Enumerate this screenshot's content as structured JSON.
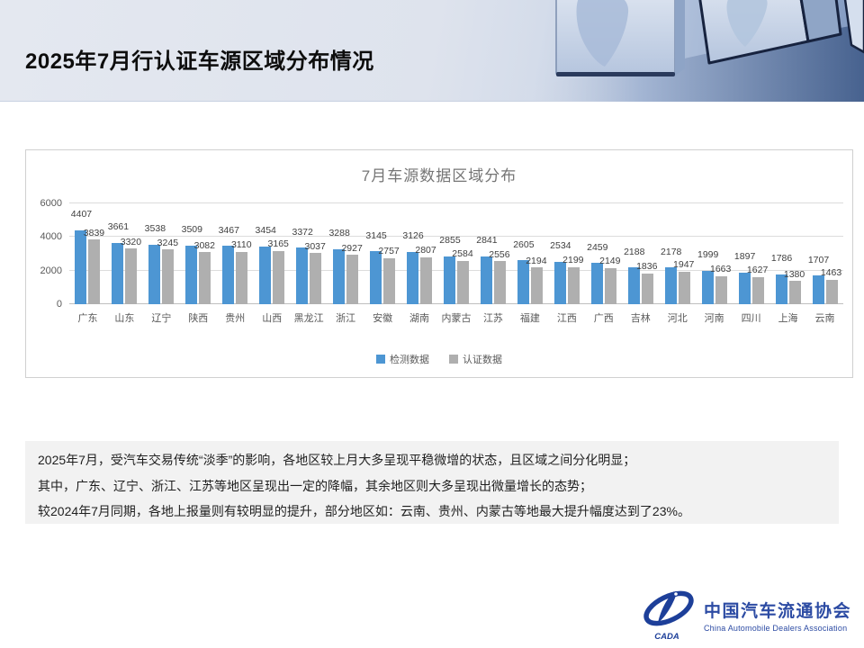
{
  "slide": {
    "title": "2025年7月行认证车源区域分布情况"
  },
  "chart_data": {
    "type": "bar",
    "title": "7月车源数据区域分布",
    "categories": [
      "广东",
      "山东",
      "辽宁",
      "陕西",
      "贵州",
      "山西",
      "黑龙江",
      "浙江",
      "安徽",
      "湖南",
      "内蒙古",
      "江苏",
      "福建",
      "江西",
      "广西",
      "吉林",
      "河北",
      "河南",
      "四川",
      "上海",
      "云南"
    ],
    "series": [
      {
        "name": "检测数据",
        "color": "#4D96D3",
        "values": [
          4407,
          3661,
          3538,
          3509,
          3467,
          3454,
          3372,
          3288,
          3145,
          3126,
          2855,
          2841,
          2605,
          2534,
          2459,
          2188,
          2178,
          1999,
          1897,
          1786,
          1707
        ]
      },
      {
        "name": "认证数据",
        "color": "#AFAFAF",
        "values": [
          3839,
          3320,
          3245,
          3082,
          3110,
          3165,
          3037,
          2927,
          2757,
          2807,
          2584,
          2556,
          2194,
          2199,
          2149,
          1836,
          1947,
          1663,
          1627,
          1380,
          1463
        ]
      }
    ],
    "ylim": [
      0,
      6000
    ],
    "yticks": [
      0,
      2000,
      4000,
      6000
    ],
    "grid": true,
    "legend_position": "bottom",
    "data_labels": true
  },
  "summary": {
    "lines": [
      "2025年7月，受汽车交易传统“淡季”的影响，各地区较上月大多呈现平稳微增的状态，且区域之间分化明显；",
      "其中，广东、辽宁、浙江、江苏等地区呈现出一定的降幅，其余地区则大多呈现出微量增长的态势；",
      "较2024年7月同期，各地上报量则有较明显的提升，部分地区如：云南、贵州、内蒙古等地最大提升幅度达到了23%。"
    ]
  },
  "footer": {
    "org_name_cn": "中国汽车流通协会",
    "org_name_en": "China Automobile Dealers Association",
    "logo_text": "CADA",
    "brand_color": "#2C4BA3",
    "logo_color": "#1D3F99"
  }
}
